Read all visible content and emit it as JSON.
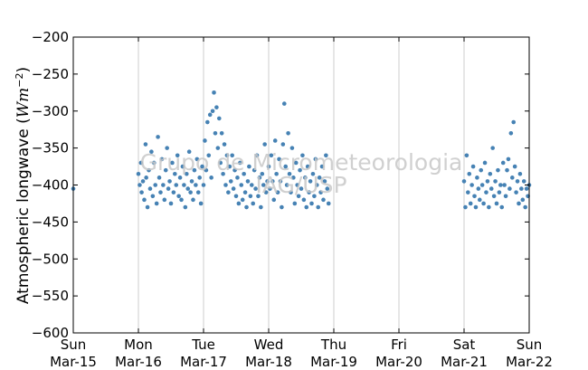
{
  "chart_data": {
    "type": "scatter",
    "ylabel": "Atmospheric longwave (W m⁻²)",
    "ylabel_plain": "Atmospheric longwave (",
    "ylabel_math": "Wm",
    "ylabel_exp": "−2",
    "ylabel_close": ")",
    "ylim": [
      -600,
      -200
    ],
    "yticks": [
      "−200",
      "−250",
      "−300",
      "−350",
      "−400",
      "−450",
      "−500",
      "−550",
      "−600"
    ],
    "ytick_values": [
      -200,
      -250,
      -300,
      -350,
      -400,
      -450,
      -500,
      -550,
      -600
    ],
    "xlim": [
      0,
      7
    ],
    "xticks": [
      {
        "day": "Sun",
        "date": "Mar-15"
      },
      {
        "day": "Mon",
        "date": "Mar-16"
      },
      {
        "day": "Tue",
        "date": "Mar-17"
      },
      {
        "day": "Wed",
        "date": "Mar-18"
      },
      {
        "day": "Thu",
        "date": "Mar-19"
      },
      {
        "day": "Fri",
        "date": "Mar-20"
      },
      {
        "day": "Sat",
        "date": "Mar-21"
      },
      {
        "day": "Sun",
        "date": "Mar-22"
      }
    ],
    "grid": "vertical",
    "marker_color": "#4682b4",
    "segments": [
      {
        "from": "Mar-15",
        "to": "Mar-15",
        "points": [
          [
            -0.0,
            -405
          ]
        ]
      },
      {
        "from": "Mar-16",
        "to": "Mar-19",
        "points": [
          [
            1.0,
            -385
          ],
          [
            1.02,
            -400
          ],
          [
            1.04,
            -370
          ],
          [
            1.05,
            -410
          ],
          [
            1.07,
            -395
          ],
          [
            1.09,
            -420
          ],
          [
            1.11,
            -345
          ],
          [
            1.12,
            -390
          ],
          [
            1.14,
            -430
          ],
          [
            1.16,
            -380
          ],
          [
            1.18,
            -405
          ],
          [
            1.2,
            -355
          ],
          [
            1.22,
            -415
          ],
          [
            1.24,
            -370
          ],
          [
            1.26,
            -400
          ],
          [
            1.28,
            -425
          ],
          [
            1.3,
            -335
          ],
          [
            1.32,
            -390
          ],
          [
            1.34,
            -410
          ],
          [
            1.36,
            -365
          ],
          [
            1.38,
            -400
          ],
          [
            1.4,
            -420
          ],
          [
            1.42,
            -380
          ],
          [
            1.44,
            -350
          ],
          [
            1.46,
            -405
          ],
          [
            1.48,
            -395
          ],
          [
            1.5,
            -425
          ],
          [
            1.52,
            -370
          ],
          [
            1.54,
            -410
          ],
          [
            1.56,
            -385
          ],
          [
            1.58,
            -400
          ],
          [
            1.6,
            -360
          ],
          [
            1.62,
            -415
          ],
          [
            1.64,
            -390
          ],
          [
            1.66,
            -420
          ],
          [
            1.68,
            -375
          ],
          [
            1.7,
            -400
          ],
          [
            1.72,
            -430
          ],
          [
            1.74,
            -385
          ],
          [
            1.76,
            -405
          ],
          [
            1.78,
            -355
          ],
          [
            1.8,
            -410
          ],
          [
            1.82,
            -395
          ],
          [
            1.84,
            -420
          ],
          [
            1.86,
            -380
          ],
          [
            1.88,
            -400
          ],
          [
            1.9,
            -365
          ],
          [
            1.92,
            -410
          ],
          [
            1.94,
            -390
          ],
          [
            1.96,
            -425
          ],
          [
            1.98,
            -375
          ],
          [
            2.0,
            -400
          ],
          [
            2.02,
            -340
          ],
          [
            2.04,
            -380
          ],
          [
            2.06,
            -315
          ],
          [
            2.08,
            -360
          ],
          [
            2.1,
            -305
          ],
          [
            2.12,
            -390
          ],
          [
            2.14,
            -300
          ],
          [
            2.16,
            -275
          ],
          [
            2.18,
            -330
          ],
          [
            2.2,
            -295
          ],
          [
            2.22,
            -350
          ],
          [
            2.24,
            -310
          ],
          [
            2.26,
            -370
          ],
          [
            2.28,
            -330
          ],
          [
            2.3,
            -385
          ],
          [
            2.32,
            -345
          ],
          [
            2.34,
            -400
          ],
          [
            2.36,
            -360
          ],
          [
            2.38,
            -410
          ],
          [
            2.4,
            -375
          ],
          [
            2.42,
            -395
          ],
          [
            2.44,
            -360
          ],
          [
            2.46,
            -405
          ],
          [
            2.48,
            -380
          ],
          [
            2.5,
            -415
          ],
          [
            2.52,
            -390
          ],
          [
            2.54,
            -425
          ],
          [
            2.56,
            -370
          ],
          [
            2.58,
            -400
          ],
          [
            2.6,
            -420
          ],
          [
            2.62,
            -385
          ],
          [
            2.64,
            -410
          ],
          [
            2.66,
            -430
          ],
          [
            2.68,
            -395
          ],
          [
            2.7,
            -375
          ],
          [
            2.72,
            -415
          ],
          [
            2.74,
            -400
          ],
          [
            2.76,
            -425
          ],
          [
            2.78,
            -380
          ],
          [
            2.8,
            -405
          ],
          [
            2.82,
            -360
          ],
          [
            2.84,
            -415
          ],
          [
            2.86,
            -390
          ],
          [
            2.88,
            -430
          ],
          [
            2.9,
            -385
          ],
          [
            2.92,
            -400
          ],
          [
            2.94,
            -345
          ],
          [
            2.96,
            -410
          ],
          [
            2.98,
            -395
          ],
          [
            3.0,
            -375
          ],
          [
            3.02,
            -405
          ],
          [
            3.04,
            -360
          ],
          [
            3.06,
            -395
          ],
          [
            3.08,
            -420
          ],
          [
            3.1,
            -340
          ],
          [
            3.12,
            -385
          ],
          [
            3.14,
            -410
          ],
          [
            3.16,
            -365
          ],
          [
            3.18,
            -395
          ],
          [
            3.2,
            -430
          ],
          [
            3.22,
            -345
          ],
          [
            3.24,
            -290
          ],
          [
            3.26,
            -375
          ],
          [
            3.28,
            -400
          ],
          [
            3.3,
            -330
          ],
          [
            3.32,
            -385
          ],
          [
            3.34,
            -410
          ],
          [
            3.36,
            -350
          ],
          [
            3.38,
            -390
          ],
          [
            3.4,
            -425
          ],
          [
            3.42,
            -370
          ],
          [
            3.44,
            -400
          ],
          [
            3.46,
            -415
          ],
          [
            3.48,
            -380
          ],
          [
            3.5,
            -405
          ],
          [
            3.52,
            -360
          ],
          [
            3.54,
            -420
          ],
          [
            3.56,
            -390
          ],
          [
            3.58,
            -430
          ],
          [
            3.6,
            -375
          ],
          [
            3.62,
            -410
          ],
          [
            3.64,
            -395
          ],
          [
            3.66,
            -425
          ],
          [
            3.68,
            -385
          ],
          [
            3.7,
            -415
          ],
          [
            3.72,
            -365
          ],
          [
            3.74,
            -400
          ],
          [
            3.76,
            -430
          ],
          [
            3.78,
            -390
          ],
          [
            3.8,
            -410
          ],
          [
            3.82,
            -375
          ],
          [
            3.84,
            -420
          ],
          [
            3.86,
            -395
          ],
          [
            3.88,
            -360
          ],
          [
            3.9,
            -405
          ],
          [
            3.92,
            -425
          ]
        ]
      },
      {
        "from": "Mar-21",
        "to": "Mar-22",
        "points": [
          [
            6.0,
            -395
          ],
          [
            6.02,
            -430
          ],
          [
            6.04,
            -360
          ],
          [
            6.06,
            -410
          ],
          [
            6.08,
            -385
          ],
          [
            6.1,
            -425
          ],
          [
            6.12,
            -400
          ],
          [
            6.14,
            -375
          ],
          [
            6.16,
            -415
          ],
          [
            6.18,
            -430
          ],
          [
            6.2,
            -390
          ],
          [
            6.22,
            -405
          ],
          [
            6.24,
            -420
          ],
          [
            6.26,
            -380
          ],
          [
            6.28,
            -400
          ],
          [
            6.3,
            -425
          ],
          [
            6.32,
            -370
          ],
          [
            6.34,
            -410
          ],
          [
            6.36,
            -395
          ],
          [
            6.38,
            -430
          ],
          [
            6.4,
            -385
          ],
          [
            6.42,
            -405
          ],
          [
            6.44,
            -350
          ],
          [
            6.46,
            -415
          ],
          [
            6.48,
            -395
          ],
          [
            6.5,
            -425
          ],
          [
            6.52,
            -380
          ],
          [
            6.54,
            -410
          ],
          [
            6.56,
            -400
          ],
          [
            6.58,
            -430
          ],
          [
            6.6,
            -370
          ],
          [
            6.62,
            -400
          ],
          [
            6.64,
            -415
          ],
          [
            6.66,
            -380
          ],
          [
            6.68,
            -365
          ],
          [
            6.7,
            -405
          ],
          [
            6.72,
            -330
          ],
          [
            6.74,
            -390
          ],
          [
            6.76,
            -315
          ],
          [
            6.78,
            -375
          ],
          [
            6.8,
            -410
          ],
          [
            6.82,
            -395
          ],
          [
            6.84,
            -425
          ],
          [
            6.86,
            -385
          ],
          [
            6.88,
            -405
          ],
          [
            6.9,
            -420
          ],
          [
            6.92,
            -395
          ],
          [
            6.94,
            -430
          ],
          [
            6.96,
            -405
          ],
          [
            6.98,
            -415
          ],
          [
            7.0,
            -400
          ]
        ]
      }
    ]
  },
  "watermark": {
    "line1": "Grupo de Micrometeorologia",
    "line2": "IAG/USP"
  }
}
